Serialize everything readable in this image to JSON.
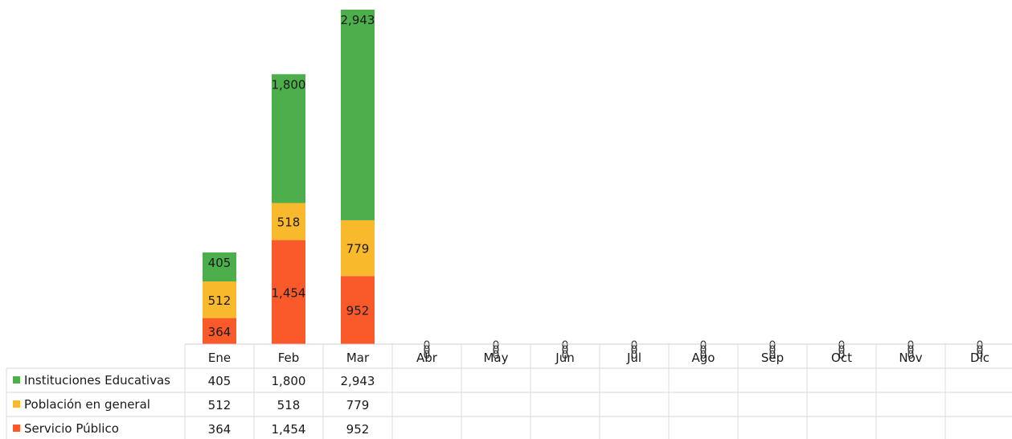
{
  "chart_data": {
    "type": "bar",
    "stacked": true,
    "categories": [
      "Ene",
      "Feb",
      "Mar",
      "Abr",
      "May",
      "Jun",
      "Jul",
      "Ago",
      "Sep",
      "Oct",
      "Nov",
      "Dic"
    ],
    "series": [
      {
        "name": "Servicio Público",
        "color": "#fa5a2a",
        "values": [
          364,
          1454,
          952,
          0,
          0,
          0,
          0,
          0,
          0,
          0,
          0,
          0
        ],
        "table_values": [
          "364",
          "1,454",
          "952",
          "",
          "",
          "",
          "",
          "",
          "",
          "",
          "",
          ""
        ]
      },
      {
        "name": "Población en general",
        "color": "#f9b92d",
        "values": [
          512,
          518,
          779,
          0,
          0,
          0,
          0,
          0,
          0,
          0,
          0,
          0
        ],
        "table_values": [
          "512",
          "518",
          "779",
          "",
          "",
          "",
          "",
          "",
          "",
          "",
          "",
          ""
        ]
      },
      {
        "name": "Instituciones Educativas",
        "color": "#4caf4c",
        "values": [
          405,
          1800,
          2943,
          0,
          0,
          0,
          0,
          0,
          0,
          0,
          0,
          0
        ],
        "table_values": [
          "405",
          "1,800",
          "2,943",
          "",
          "",
          "",
          "",
          "",
          "",
          "",
          "",
          ""
        ]
      }
    ],
    "table_row_order": [
      "Instituciones Educativas",
      "Población en general",
      "Servicio Público"
    ],
    "data_labels": true,
    "data_table": true,
    "legend": "in-table",
    "grid": false,
    "title": "",
    "xlabel": "",
    "ylabel": ""
  }
}
